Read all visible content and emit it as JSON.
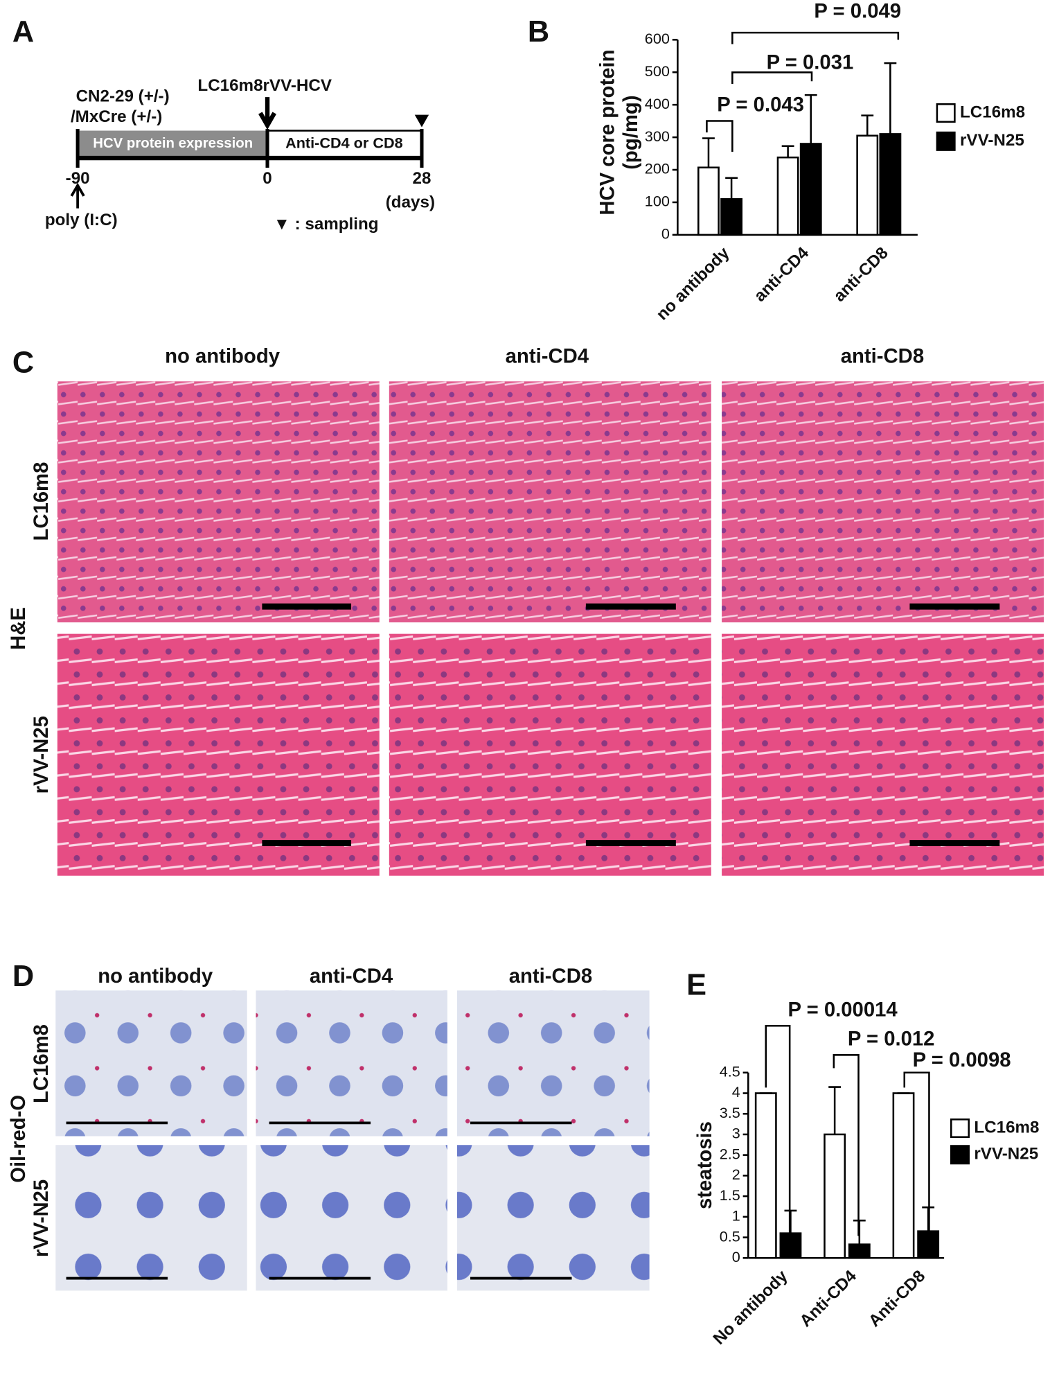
{
  "panels": {
    "labels": [
      "A",
      "B",
      "C",
      "D",
      "E"
    ],
    "A": {
      "strain": [
        "CN2-29 (+/-)",
        "/MxCre (+/-)"
      ],
      "virus": "LC16m8rVV-HCV",
      "phase1": "HCV protein expression",
      "phase2": "Anti-CD4 or CD8",
      "days": [
        "-90",
        "0",
        "28"
      ],
      "unit": "(days)",
      "inducer": "poly (I:C)",
      "legend": "▼ : sampling"
    },
    "C": {
      "columns": [
        "no antibody",
        "anti-CD4",
        "anti-CD8"
      ],
      "rows": [
        "LC16m8",
        "rVV-N25"
      ],
      "stain": "H&E"
    },
    "D": {
      "columns": [
        "no antibody",
        "anti-CD4",
        "anti-CD8"
      ],
      "rows": [
        "LC16m8",
        "rVV-N25"
      ],
      "stain": "Oil-red-O"
    }
  },
  "chart_data": [
    {
      "type": "bar",
      "y_label": [
        "HCV core protein",
        "(pg/mg)"
      ],
      "categories": [
        "no antibody",
        "anti-CD4",
        "anti-CD8"
      ],
      "series": [
        {
          "name": "LC16m8",
          "color": "#ffffff",
          "values": [
            207,
            238,
            305
          ],
          "errors": [
            90,
            35,
            62
          ]
        },
        {
          "name": "rVV-N25",
          "color": "#000000",
          "values": [
            110,
            280,
            310
          ],
          "errors": [
            65,
            150,
            218
          ]
        }
      ],
      "ylim": [
        0,
        600
      ],
      "yticks": [
        0,
        100,
        200,
        300,
        400,
        500,
        600
      ],
      "legend": "right",
      "annotations": [
        "P = 0.043",
        "P = 0.031",
        "P = 0.049"
      ]
    },
    {
      "type": "bar",
      "y_label": [
        "steatosis"
      ],
      "categories": [
        "No antibody",
        "Anti-CD4",
        "Anti-CD8"
      ],
      "series": [
        {
          "name": "LC16m8",
          "color": "#ffffff",
          "values": [
            4,
            3,
            4
          ],
          "errors": [
            0,
            1.15,
            0
          ]
        },
        {
          "name": "rVV-N25",
          "color": "#000000",
          "values": [
            0.6,
            0.33,
            0.65
          ],
          "errors": [
            0.55,
            0.58,
            0.58
          ]
        }
      ],
      "ylim": [
        0,
        4.5
      ],
      "yticks": [
        0,
        0.5,
        1,
        1.5,
        2,
        2.5,
        3,
        3.5,
        4,
        4.5
      ],
      "legend": "right",
      "annotations": [
        "P = 0.00014",
        "P = 0.012",
        "P = 0.0098"
      ]
    }
  ]
}
